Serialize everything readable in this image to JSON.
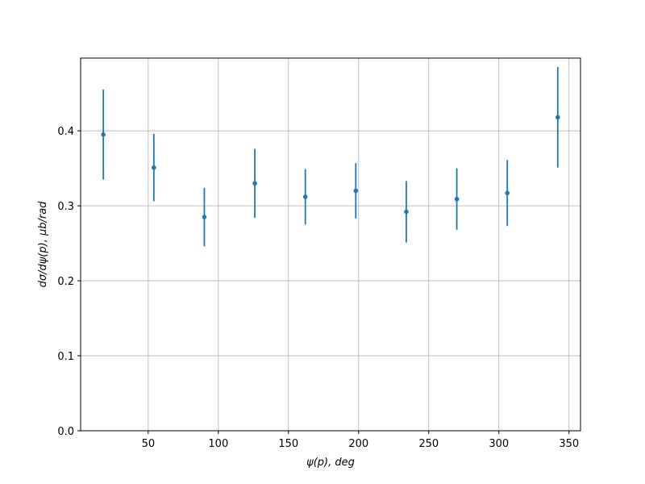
{
  "chart_data": {
    "type": "errorbar",
    "xlabel": "ψ(p), deg",
    "ylabel": "dσ/dψ(p), μb/rad",
    "x": [
      18,
      54,
      90,
      126,
      162,
      198,
      234,
      270,
      306,
      342
    ],
    "values": [
      0.395,
      0.351,
      0.285,
      0.33,
      0.312,
      0.32,
      0.292,
      0.309,
      0.317,
      0.418
    ],
    "errors": [
      0.06,
      0.045,
      0.039,
      0.046,
      0.037,
      0.037,
      0.041,
      0.041,
      0.044,
      0.067
    ],
    "color": "#1f77b4",
    "xlim": [
      1.8,
      358.2
    ],
    "ylim": [
      0,
      0.497
    ],
    "xticks": [
      50,
      100,
      150,
      200,
      250,
      300,
      350
    ],
    "yticks": [
      {
        "value": 0,
        "label": "0.0"
      },
      0.1,
      0.2,
      0.3,
      0.4
    ],
    "grid": true
  }
}
